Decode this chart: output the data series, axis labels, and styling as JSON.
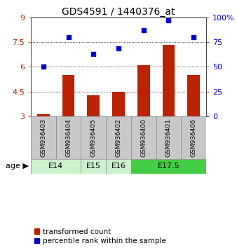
{
  "title": "GDS4591 / 1440376_at",
  "samples": [
    "GSM936403",
    "GSM936404",
    "GSM936405",
    "GSM936402",
    "GSM936400",
    "GSM936401",
    "GSM936406"
  ],
  "transformed_count": [
    3.12,
    5.5,
    4.28,
    4.48,
    6.1,
    7.32,
    5.5
  ],
  "percentile_rank": [
    50,
    80,
    63,
    69,
    87,
    97,
    80
  ],
  "bar_color": "#bb2200",
  "dot_color": "#0000cc",
  "left_ylim": [
    3,
    9
  ],
  "right_ylim": [
    0,
    100
  ],
  "left_yticks": [
    3,
    4.5,
    6,
    7.5,
    9
  ],
  "right_yticks": [
    0,
    25,
    50,
    75,
    100
  ],
  "right_yticklabels": [
    "0",
    "25",
    "50",
    "75",
    "100%"
  ],
  "hlines": [
    4.5,
    6.0,
    7.5
  ],
  "bar_bottom": 3.0,
  "age_groups": [
    {
      "label": "E14",
      "start": 0,
      "end": 1,
      "color": "#ccf0cc"
    },
    {
      "label": "E15",
      "start": 2,
      "end": 2,
      "color": "#ccf0cc"
    },
    {
      "label": "E16",
      "start": 3,
      "end": 3,
      "color": "#ccf0cc"
    },
    {
      "label": "E17.5",
      "start": 4,
      "end": 6,
      "color": "#44cc44"
    }
  ],
  "sample_bg_color": "#c8c8c8",
  "title_fontsize": 10,
  "axis_fontsize": 8,
  "sample_fontsize": 6.5,
  "age_fontsize": 8,
  "legend_fontsize": 7.5
}
